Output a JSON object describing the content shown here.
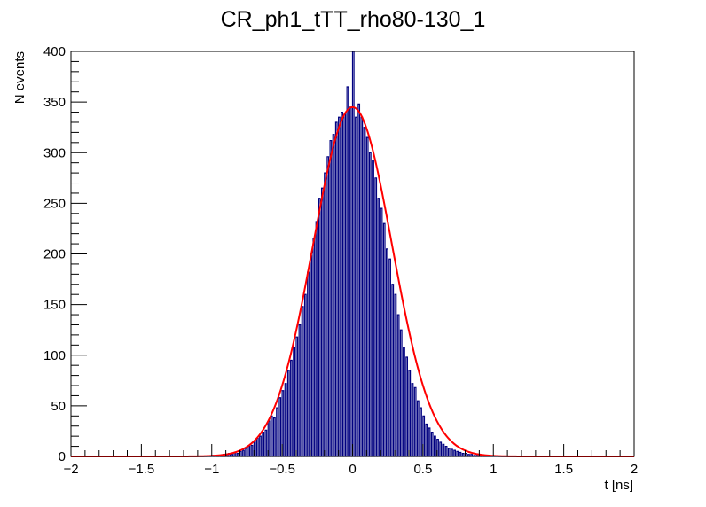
{
  "chart_data": {
    "type": "histogram",
    "title": "CR_ph1_tTT_rho80-130_1",
    "xlabel": "t [ns]",
    "ylabel": "N events",
    "xlim": [
      -2,
      2
    ],
    "ylim": [
      0,
      400
    ],
    "x_ticks": [
      -2,
      -1.5,
      -1,
      -0.5,
      0,
      0.5,
      1,
      1.5,
      2
    ],
    "x_tick_labels": [
      "−2",
      "−1.5",
      "−1",
      "−0.5",
      "0",
      "0.5",
      "1",
      "1.5",
      "2"
    ],
    "y_ticks": [
      0,
      50,
      100,
      150,
      200,
      250,
      300,
      350,
      400
    ],
    "y_tick_labels": [
      "0",
      "50",
      "100",
      "150",
      "200",
      "250",
      "300",
      "350",
      "400"
    ],
    "grid": false,
    "colors": {
      "histogram": "#000080",
      "fit": "#ff0000",
      "axes": "#000000"
    },
    "histogram": {
      "bin_width": 0.01,
      "bins": [
        [
          -1.0,
          1
        ],
        [
          -0.98,
          1
        ],
        [
          -0.95,
          1
        ],
        [
          -0.92,
          2
        ],
        [
          -0.9,
          1
        ],
        [
          -0.88,
          3
        ],
        [
          -0.86,
          2
        ],
        [
          -0.84,
          4
        ],
        [
          -0.82,
          3
        ],
        [
          -0.8,
          5
        ],
        [
          -0.78,
          6
        ],
        [
          -0.76,
          8
        ],
        [
          -0.74,
          10
        ],
        [
          -0.72,
          11
        ],
        [
          -0.7,
          15
        ],
        [
          -0.68,
          18
        ],
        [
          -0.66,
          20
        ],
        [
          -0.64,
          24
        ],
        [
          -0.62,
          26
        ],
        [
          -0.6,
          35
        ],
        [
          -0.58,
          40
        ],
        [
          -0.56,
          38
        ],
        [
          -0.54,
          48
        ],
        [
          -0.52,
          58
        ],
        [
          -0.5,
          65
        ],
        [
          -0.48,
          72
        ],
        [
          -0.46,
          85
        ],
        [
          -0.44,
          95
        ],
        [
          -0.42,
          108
        ],
        [
          -0.4,
          118
        ],
        [
          -0.38,
          130
        ],
        [
          -0.36,
          148
        ],
        [
          -0.34,
          160
        ],
        [
          -0.32,
          182
        ],
        [
          -0.3,
          198
        ],
        [
          -0.28,
          215
        ],
        [
          -0.26,
          232
        ],
        [
          -0.24,
          255
        ],
        [
          -0.22,
          265
        ],
        [
          -0.2,
          280
        ],
        [
          -0.18,
          296
        ],
        [
          -0.16,
          312
        ],
        [
          -0.14,
          318
        ],
        [
          -0.12,
          330
        ],
        [
          -0.1,
          335
        ],
        [
          -0.08,
          340
        ],
        [
          -0.06,
          338
        ],
        [
          -0.04,
          365
        ],
        [
          -0.02,
          345
        ],
        [
          0.0,
          400
        ],
        [
          0.02,
          335
        ],
        [
          0.04,
          348
        ],
        [
          0.06,
          335
        ],
        [
          0.08,
          325
        ],
        [
          0.1,
          315
        ],
        [
          0.12,
          300
        ],
        [
          0.14,
          292
        ],
        [
          0.16,
          275
        ],
        [
          0.18,
          255
        ],
        [
          0.2,
          245
        ],
        [
          0.22,
          230
        ],
        [
          0.24,
          205
        ],
        [
          0.26,
          195
        ],
        [
          0.28,
          170
        ],
        [
          0.3,
          160
        ],
        [
          0.32,
          140
        ],
        [
          0.34,
          125
        ],
        [
          0.36,
          108
        ],
        [
          0.38,
          98
        ],
        [
          0.4,
          85
        ],
        [
          0.42,
          72
        ],
        [
          0.44,
          68
        ],
        [
          0.46,
          55
        ],
        [
          0.48,
          48
        ],
        [
          0.5,
          40
        ],
        [
          0.52,
          32
        ],
        [
          0.54,
          28
        ],
        [
          0.56,
          24
        ],
        [
          0.58,
          20
        ],
        [
          0.6,
          17
        ],
        [
          0.62,
          14
        ],
        [
          0.64,
          12
        ],
        [
          0.66,
          10
        ],
        [
          0.68,
          8
        ],
        [
          0.7,
          7
        ],
        [
          0.72,
          6
        ],
        [
          0.74,
          5
        ],
        [
          0.76,
          4
        ],
        [
          0.78,
          3
        ],
        [
          0.8,
          3
        ],
        [
          0.82,
          2
        ],
        [
          0.84,
          2
        ],
        [
          0.86,
          1
        ],
        [
          0.88,
          2
        ],
        [
          0.9,
          1
        ],
        [
          0.92,
          1
        ]
      ]
    },
    "fit": {
      "function": "gaus",
      "amplitude": 345,
      "mean": 0.0,
      "sigma": 0.28
    }
  }
}
